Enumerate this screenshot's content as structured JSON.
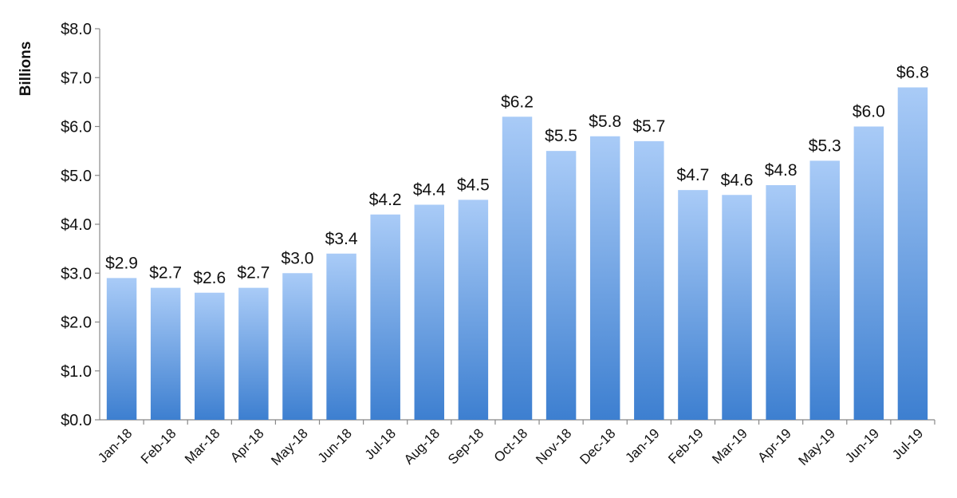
{
  "chart_data": {
    "type": "bar",
    "ylabel": "Billions",
    "xlabel": "",
    "ylim": [
      0,
      8
    ],
    "yticks": [
      "$0.0",
      "$1.0",
      "$2.0",
      "$3.0",
      "$4.0",
      "$5.0",
      "$6.0",
      "$7.0",
      "$8.0"
    ],
    "grid": false,
    "categories": [
      "Jan-18",
      "Feb-18",
      "Mar-18",
      "Apr-18",
      "May-18",
      "Jun-18",
      "Jul-18",
      "Aug-18",
      "Sep-18",
      "Oct-18",
      "Nov-18",
      "Dec-18",
      "Jan-19",
      "Feb-19",
      "Mar-19",
      "Apr-19",
      "May-19",
      "Jun-19",
      "Jul-19"
    ],
    "values": [
      2.9,
      2.7,
      2.6,
      2.7,
      3.0,
      3.4,
      4.2,
      4.4,
      4.5,
      6.2,
      5.5,
      5.8,
      5.7,
      4.7,
      4.6,
      4.8,
      5.3,
      6.0,
      6.8
    ],
    "data_labels": [
      "$2.9",
      "$2.7",
      "$2.6",
      "$2.7",
      "$3.0",
      "$3.4",
      "$4.2",
      "$4.4",
      "$4.5",
      "$6.2",
      "$5.5",
      "$5.8",
      "$5.7",
      "$4.7",
      "$4.6",
      "$4.8",
      "$5.3",
      "$6.0",
      "$6.8"
    ],
    "colors": {
      "bar_top": "#a9cbf7",
      "bar_bottom": "#3d7fd0",
      "axis": "#888888"
    }
  }
}
